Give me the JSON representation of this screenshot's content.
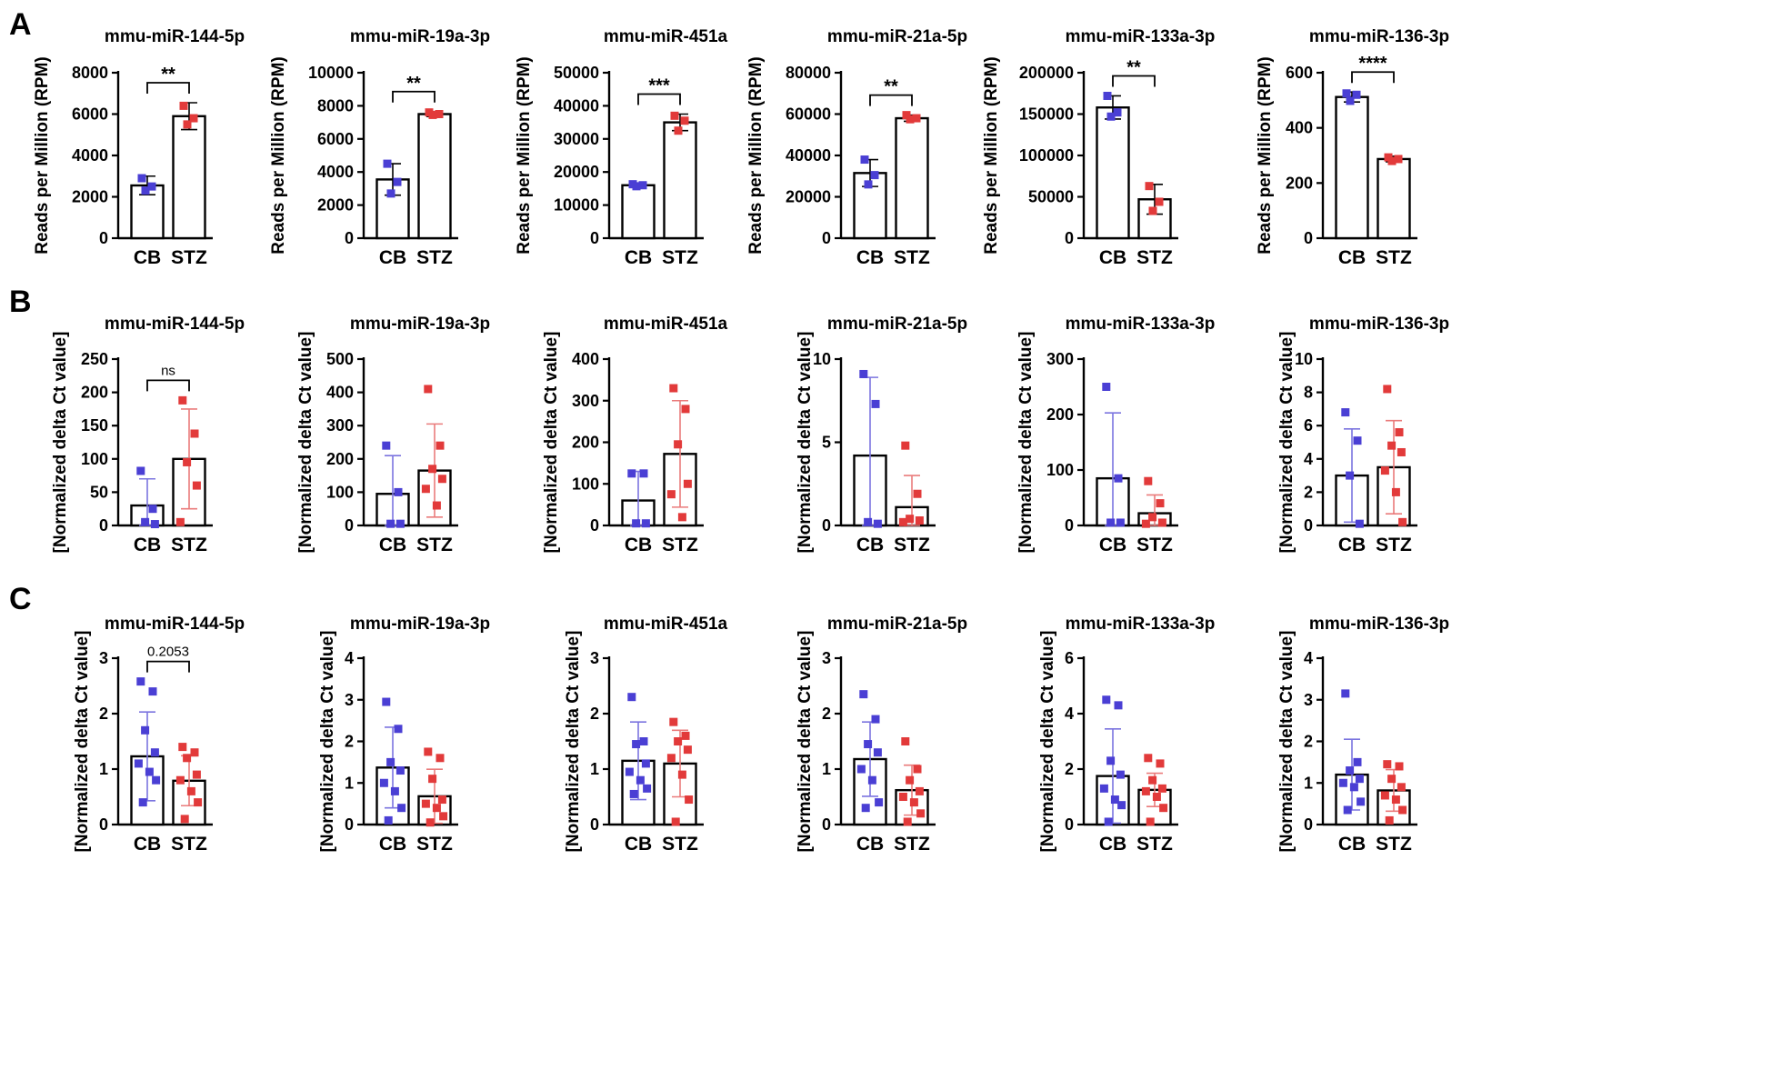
{
  "colors": {
    "cb": "#4a3fd4",
    "stz": "#e23a3a",
    "cb_err": "#7b74df",
    "stz_err": "#ea7b7b"
  },
  "groups": [
    "CB",
    "STZ"
  ],
  "panels": [
    {
      "letter": "A",
      "ylabel": "Reads per Million (RPM)",
      "bar_style": "fill"
    },
    {
      "letter": "B",
      "ylabel": "[Normalized delta Ct value]",
      "bar_style": "outline"
    },
    {
      "letter": "C",
      "ylabel": "[Normalized delta Ct value]",
      "bar_style": "outline"
    }
  ],
  "chart_data": [
    {
      "type": "bar",
      "panel": "A",
      "title": "mmu-miR-144-5p",
      "ylim": [
        0,
        8000
      ],
      "yticks": [
        0,
        2000,
        4000,
        6000,
        8000
      ],
      "categories": [
        "CB",
        "STZ"
      ],
      "values": [
        2550,
        5900
      ],
      "errors": [
        450,
        650
      ],
      "points": [
        [
          2900,
          2500,
          2300
        ],
        [
          6400,
          5800,
          5500
        ]
      ],
      "significance": "**"
    },
    {
      "type": "bar",
      "panel": "A",
      "title": "mmu-miR-19a-3p",
      "ylim": [
        0,
        10000
      ],
      "yticks": [
        0,
        2000,
        4000,
        6000,
        8000,
        10000
      ],
      "categories": [
        "CB",
        "STZ"
      ],
      "values": [
        3550,
        7500
      ],
      "errors": [
        950,
        150
      ],
      "points": [
        [
          4500,
          3400,
          2700
        ],
        [
          7600,
          7500,
          7450
        ]
      ],
      "significance": "**"
    },
    {
      "type": "bar",
      "panel": "A",
      "title": "mmu-miR-451a",
      "ylim": [
        0,
        50000
      ],
      "yticks": [
        0,
        10000,
        20000,
        30000,
        40000,
        50000
      ],
      "categories": [
        "CB",
        "STZ"
      ],
      "values": [
        16000,
        35000
      ],
      "errors": [
        600,
        2500
      ],
      "points": [
        [
          16300,
          16000,
          15700
        ],
        [
          37000,
          35500,
          32500
        ]
      ],
      "significance": "***"
    },
    {
      "type": "bar",
      "panel": "A",
      "title": "mmu-miR-21a-5p",
      "ylim": [
        0,
        80000
      ],
      "yticks": [
        0,
        20000,
        40000,
        60000,
        80000
      ],
      "categories": [
        "CB",
        "STZ"
      ],
      "values": [
        31500,
        58000
      ],
      "errors": [
        6500,
        1500
      ],
      "points": [
        [
          38000,
          30500,
          26000
        ],
        [
          59500,
          58000,
          57500
        ]
      ],
      "significance": "**"
    },
    {
      "type": "bar",
      "panel": "A",
      "title": "mmu-miR-133a-3p",
      "ylim": [
        0,
        200000
      ],
      "yticks": [
        0,
        50000,
        100000,
        150000,
        200000
      ],
      "categories": [
        "CB",
        "STZ"
      ],
      "values": [
        158000,
        47000
      ],
      "errors": [
        14000,
        18000
      ],
      "points": [
        [
          172000,
          152000,
          147000
        ],
        [
          63000,
          44000,
          33000
        ]
      ],
      "significance": "**"
    },
    {
      "type": "bar",
      "panel": "A",
      "title": "mmu-miR-136-3p",
      "ylim": [
        0,
        600
      ],
      "yticks": [
        0,
        200,
        400,
        600
      ],
      "categories": [
        "CB",
        "STZ"
      ],
      "values": [
        512,
        287
      ],
      "errors": [
        18,
        10
      ],
      "points": [
        [
          525,
          520,
          498
        ],
        [
          293,
          287,
          280
        ]
      ],
      "significance": "****"
    },
    {
      "type": "bar",
      "panel": "B",
      "title": "mmu-miR-144-5p",
      "ylim": [
        0,
        250
      ],
      "yticks": [
        0,
        50,
        100,
        150,
        200,
        250
      ],
      "categories": [
        "CB",
        "STZ"
      ],
      "values": [
        30,
        100
      ],
      "errors": [
        40,
        75
      ],
      "points": [
        [
          82,
          25,
          5,
          2
        ],
        [
          188,
          138,
          95,
          60,
          5
        ]
      ],
      "significance": "ns"
    },
    {
      "type": "bar",
      "panel": "B",
      "title": "mmu-miR-19a-3p",
      "ylim": [
        0,
        500
      ],
      "yticks": [
        0,
        100,
        200,
        300,
        400,
        500
      ],
      "categories": [
        "CB",
        "STZ"
      ],
      "values": [
        95,
        165
      ],
      "errors": [
        115,
        140
      ],
      "points": [
        [
          240,
          100,
          5,
          5
        ],
        [
          410,
          240,
          170,
          140,
          110,
          60
        ]
      ]
    },
    {
      "type": "bar",
      "panel": "B",
      "title": "mmu-miR-451a",
      "ylim": [
        0,
        400
      ],
      "yticks": [
        0,
        100,
        200,
        300,
        400
      ],
      "categories": [
        "CB",
        "STZ"
      ],
      "values": [
        60,
        172
      ],
      "errors": [
        70,
        128
      ],
      "points": [
        [
          125,
          125,
          5,
          5
        ],
        [
          330,
          280,
          195,
          100,
          75,
          20
        ]
      ]
    },
    {
      "type": "bar",
      "panel": "B",
      "title": "mmu-miR-21a-5p",
      "ylim": [
        0,
        10
      ],
      "yticks": [
        0,
        5,
        10
      ],
      "categories": [
        "CB",
        "STZ"
      ],
      "values": [
        4.2,
        1.1
      ],
      "errors": [
        4.7,
        1.9
      ],
      "points": [
        [
          9.1,
          7.3,
          0.2,
          0.1
        ],
        [
          4.8,
          1.9,
          0.4,
          0.3,
          0.2
        ]
      ]
    },
    {
      "type": "bar",
      "panel": "B",
      "title": "mmu-miR-133a-3p",
      "ylim": [
        0,
        300
      ],
      "yticks": [
        0,
        100,
        200,
        300
      ],
      "categories": [
        "CB",
        "STZ"
      ],
      "values": [
        85,
        22
      ],
      "errors": [
        118,
        33
      ],
      "points": [
        [
          250,
          85,
          5,
          5
        ],
        [
          80,
          40,
          15,
          5,
          3
        ]
      ]
    },
    {
      "type": "bar",
      "panel": "B",
      "title": "mmu-miR-136-3p",
      "ylim": [
        0,
        10
      ],
      "yticks": [
        0,
        2,
        4,
        6,
        8,
        10
      ],
      "categories": [
        "CB",
        "STZ"
      ],
      "values": [
        3.0,
        3.5
      ],
      "errors": [
        2.8,
        2.8
      ],
      "points": [
        [
          6.8,
          5.1,
          3.0,
          0.1
        ],
        [
          8.2,
          5.6,
          4.8,
          4.4,
          3.3,
          2.0,
          0.2
        ]
      ]
    },
    {
      "type": "bar",
      "panel": "C",
      "title": "mmu-miR-144-5p",
      "ylim": [
        0,
        3
      ],
      "yticks": [
        0,
        1,
        2,
        3
      ],
      "categories": [
        "CB",
        "STZ"
      ],
      "values": [
        1.23,
        0.79
      ],
      "errors": [
        0.8,
        0.45
      ],
      "points": [
        [
          2.58,
          2.4,
          1.7,
          1.3,
          1.1,
          0.95,
          0.8,
          0.4
        ],
        [
          1.4,
          1.3,
          1.2,
          0.9,
          0.8,
          0.6,
          0.4,
          0.1
        ]
      ],
      "significance": "0.2053"
    },
    {
      "type": "bar",
      "panel": "C",
      "title": "mmu-miR-19a-3p",
      "ylim": [
        0,
        4
      ],
      "yticks": [
        0,
        1,
        2,
        3,
        4
      ],
      "categories": [
        "CB",
        "STZ"
      ],
      "values": [
        1.37,
        0.68
      ],
      "errors": [
        0.97,
        0.65
      ],
      "points": [
        [
          2.95,
          2.3,
          1.5,
          1.3,
          1.0,
          0.8,
          0.4,
          0.1
        ],
        [
          1.75,
          1.6,
          1.1,
          0.6,
          0.5,
          0.4,
          0.2,
          0.05
        ]
      ]
    },
    {
      "type": "bar",
      "panel": "C",
      "title": "mmu-miR-451a",
      "ylim": [
        0,
        3
      ],
      "yticks": [
        0,
        1,
        2,
        3
      ],
      "categories": [
        "CB",
        "STZ"
      ],
      "values": [
        1.15,
        1.1
      ],
      "errors": [
        0.7,
        0.6
      ],
      "points": [
        [
          2.3,
          1.5,
          1.45,
          1.1,
          0.95,
          0.8,
          0.65,
          0.55
        ],
        [
          1.85,
          1.6,
          1.5,
          1.35,
          1.2,
          0.9,
          0.45,
          0.05
        ]
      ]
    },
    {
      "type": "bar",
      "panel": "C",
      "title": "mmu-miR-21a-5p",
      "ylim": [
        0,
        3
      ],
      "yticks": [
        0,
        1,
        2,
        3
      ],
      "categories": [
        "CB",
        "STZ"
      ],
      "values": [
        1.18,
        0.62
      ],
      "errors": [
        0.67,
        0.45
      ],
      "points": [
        [
          2.35,
          1.9,
          1.45,
          1.3,
          1.0,
          0.8,
          0.4,
          0.3
        ],
        [
          1.5,
          1.0,
          0.8,
          0.6,
          0.5,
          0.4,
          0.2,
          0.05
        ]
      ]
    },
    {
      "type": "bar",
      "panel": "C",
      "title": "mmu-miR-133a-3p",
      "ylim": [
        0,
        6
      ],
      "yticks": [
        0,
        2,
        4,
        6
      ],
      "categories": [
        "CB",
        "STZ"
      ],
      "values": [
        1.75,
        1.25
      ],
      "errors": [
        1.7,
        0.6
      ],
      "points": [
        [
          4.5,
          4.3,
          2.3,
          1.8,
          1.3,
          0.9,
          0.7,
          0.1
        ],
        [
          2.4,
          2.2,
          1.6,
          1.3,
          1.2,
          1.0,
          0.6,
          0.1
        ]
      ]
    },
    {
      "type": "bar",
      "panel": "C",
      "title": "mmu-miR-136-3p",
      "ylim": [
        0,
        4
      ],
      "yticks": [
        0,
        1,
        2,
        3,
        4
      ],
      "categories": [
        "CB",
        "STZ"
      ],
      "values": [
        1.2,
        0.82
      ],
      "errors": [
        0.85,
        0.5
      ],
      "points": [
        [
          3.15,
          1.5,
          1.3,
          1.1,
          1.0,
          0.9,
          0.55,
          0.35
        ],
        [
          1.45,
          1.4,
          1.1,
          0.9,
          0.7,
          0.6,
          0.35,
          0.1
        ]
      ]
    }
  ]
}
